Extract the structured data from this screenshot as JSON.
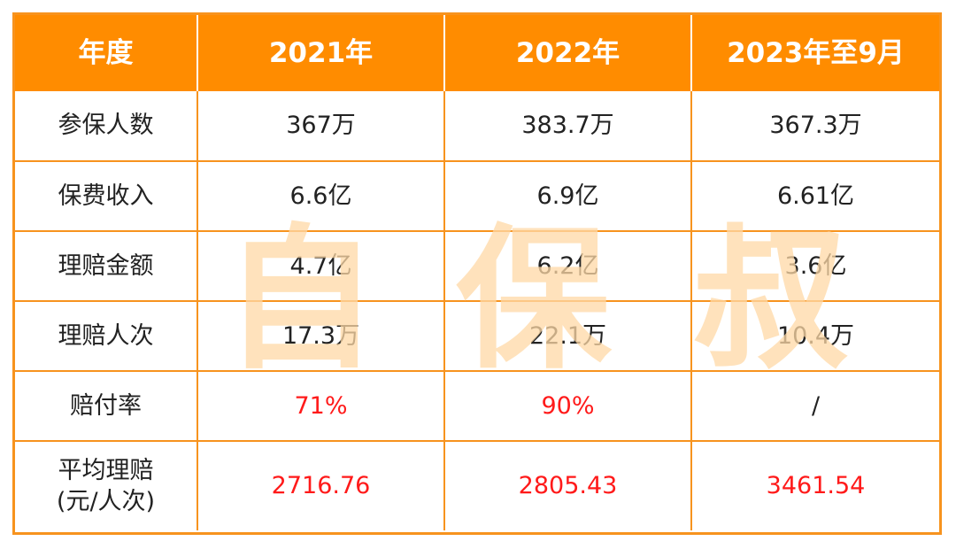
{
  "table": {
    "headers": [
      "年度",
      "2021年",
      "2022年",
      "2023年至9月"
    ],
    "rows": [
      {
        "label": "参保人数",
        "values": [
          "367万",
          "383.7万",
          "367.3万"
        ],
        "highlight": false
      },
      {
        "label": "保费收入",
        "values": [
          "6.6亿",
          "6.9亿",
          "6.61亿"
        ],
        "highlight": false
      },
      {
        "label": "理赔金额",
        "values": [
          "4.7亿",
          "6.2亿",
          "3.6亿"
        ],
        "highlight": false
      },
      {
        "label": "理赔人次",
        "values": [
          "17.3万",
          "22.1万",
          "10.4万"
        ],
        "highlight": false
      },
      {
        "label": "赔付率",
        "values": [
          "71%",
          "90%",
          "/"
        ],
        "highlight": true
      },
      {
        "label_line1": "平均理赔",
        "label_line2": "(元/人次)",
        "values": [
          "2716.76",
          "2805.43",
          "3461.54"
        ],
        "highlight": true
      }
    ]
  },
  "watermark": {
    "chars": [
      "自",
      "保",
      "叔"
    ]
  },
  "colors": {
    "header_bg": "#ff8c00",
    "border": "#f7931e",
    "highlight_text": "#ff1a1a",
    "watermark": "#ffd9a6"
  }
}
